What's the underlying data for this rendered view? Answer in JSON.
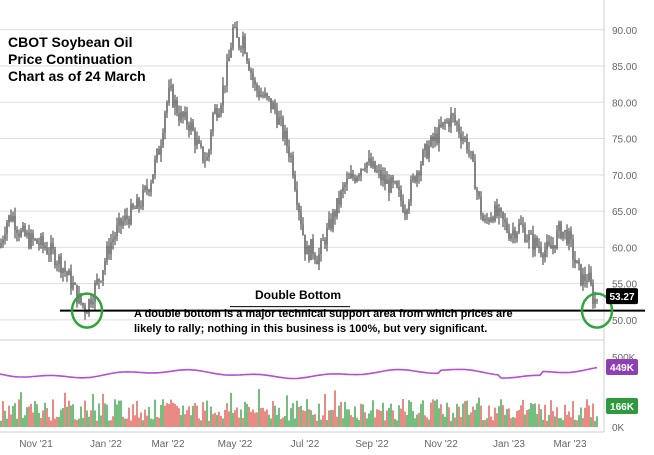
{
  "annotation": {
    "title": "CBOT Soybean Oil\nPrice Continuation\nChart as of 24 March",
    "pattern_label": "Double Bottom",
    "note": "A double bottom is a major technical support area from which prices are likely to rally; nothing in this business is 100%, but very significant."
  },
  "chart_data": {
    "type": "candlestick",
    "price_axis": {
      "ylim": [
        47.5,
        93
      ],
      "ticks": [
        "50.00",
        "55.00",
        "60.00",
        "65.00",
        "70.00",
        "75.00",
        "80.00",
        "85.00",
        "90.00"
      ]
    },
    "volume_axis": {
      "ticks": [
        "500K",
        "0K"
      ]
    },
    "time_axis": {
      "labels": [
        "Nov '21",
        "Jan '22",
        "Mar '22",
        "May '22",
        "Jul '22",
        "Sep '22",
        "Nov '22",
        "Jan '23",
        "Mar '23"
      ]
    },
    "last_price": "53.27",
    "open_interest_last": "449K",
    "volume_last": "166K",
    "support_level": 51.0,
    "price_path": [
      [
        0,
        60.0
      ],
      [
        6,
        63.5
      ],
      [
        12,
        64.5
      ],
      [
        20,
        62.0
      ],
      [
        30,
        61.0
      ],
      [
        40,
        60.5
      ],
      [
        50,
        59.5
      ],
      [
        60,
        58.0
      ],
      [
        70,
        55.5
      ],
      [
        80,
        52.5
      ],
      [
        86,
        51.5
      ],
      [
        92,
        53.5
      ],
      [
        100,
        56.0
      ],
      [
        110,
        60.5
      ],
      [
        120,
        63.0
      ],
      [
        130,
        64.5
      ],
      [
        140,
        66.0
      ],
      [
        150,
        69.0
      ],
      [
        160,
        74.0
      ],
      [
        165,
        79.0
      ],
      [
        170,
        81.5
      ],
      [
        180,
        78.0
      ],
      [
        190,
        77.0
      ],
      [
        200,
        73.0
      ],
      [
        208,
        72.0
      ],
      [
        212,
        78.0
      ],
      [
        220,
        80.0
      ],
      [
        228,
        85.0
      ],
      [
        233,
        90.0
      ],
      [
        238,
        88.0
      ],
      [
        243,
        89.0
      ],
      [
        248,
        86.0
      ],
      [
        255,
        82.0
      ],
      [
        265,
        80.5
      ],
      [
        275,
        79.0
      ],
      [
        285,
        75.0
      ],
      [
        292,
        72.0
      ],
      [
        296,
        68.0
      ],
      [
        302,
        63.0
      ],
      [
        306,
        59.0
      ],
      [
        312,
        60.0
      ],
      [
        318,
        58.5
      ],
      [
        324,
        61.0
      ],
      [
        330,
        63.0
      ],
      [
        338,
        66.0
      ],
      [
        345,
        68.5
      ],
      [
        355,
        70.0
      ],
      [
        365,
        72.0
      ],
      [
        375,
        70.5
      ],
      [
        385,
        69.0
      ],
      [
        395,
        68.0
      ],
      [
        405,
        65.5
      ],
      [
        415,
        70.0
      ],
      [
        425,
        73.0
      ],
      [
        435,
        75.0
      ],
      [
        445,
        77.0
      ],
      [
        452,
        78.0
      ],
      [
        460,
        76.0
      ],
      [
        468,
        74.0
      ],
      [
        474,
        70.0
      ],
      [
        478,
        67.0
      ],
      [
        484,
        63.0
      ],
      [
        492,
        65.0
      ],
      [
        500,
        64.0
      ],
      [
        510,
        62.0
      ],
      [
        520,
        63.0
      ],
      [
        530,
        61.0
      ],
      [
        540,
        60.0
      ],
      [
        550,
        59.5
      ],
      [
        560,
        62.5
      ],
      [
        568,
        61.5
      ],
      [
        575,
        58.0
      ],
      [
        582,
        55.5
      ],
      [
        588,
        56.0
      ],
      [
        594,
        52.5
      ],
      [
        598,
        53.27
      ]
    ]
  },
  "colors": {
    "candle": "#333333",
    "open_interest": "#b64dd3",
    "volume_up": "#3aa24a",
    "volume_down": "#e0574f",
    "circle": "#2fa53a",
    "grid": "#dedede",
    "axis_text": "#666666",
    "last_price_badge": "#000000",
    "oi_badge": "#8e3fb3",
    "vol_badge": "#2f9a3d"
  }
}
